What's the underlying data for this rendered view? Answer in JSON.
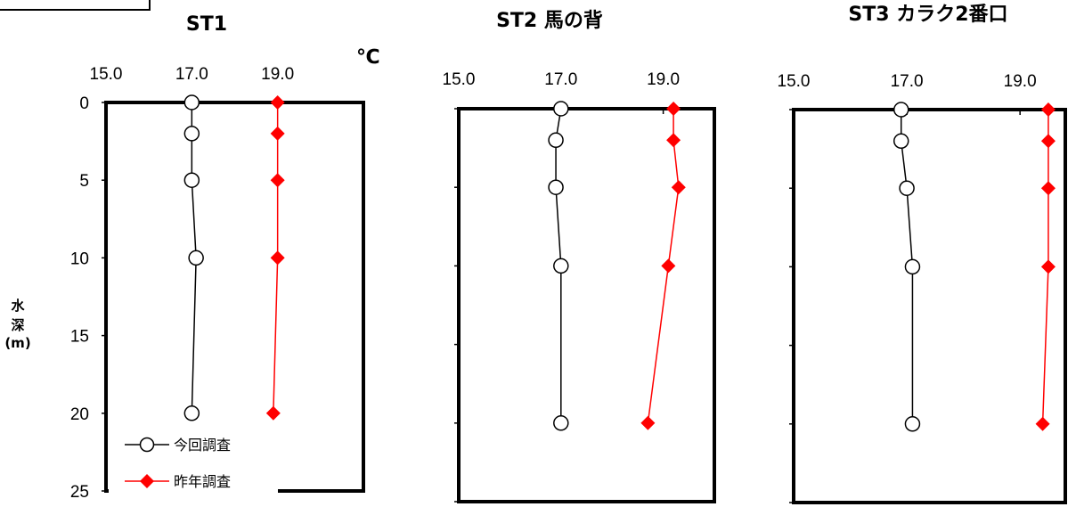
{
  "unit_label": "℃",
  "y_axis_label": [
    "水",
    "深",
    "(m)"
  ],
  "legend": [
    "今回調査",
    "昨年調査"
  ],
  "colors": {
    "current": "#000000",
    "last_year": "#ff0000"
  },
  "chart_data": [
    {
      "type": "line",
      "title": "ST1",
      "x_ticks": [
        "15.0",
        "17.0",
        "19.0"
      ],
      "y_ticks": [
        "0",
        "5",
        "10",
        "15",
        "20",
        "25"
      ],
      "xlim": [
        15.0,
        21.0
      ],
      "ylim": [
        0,
        25
      ],
      "series": [
        {
          "name": "今回調査",
          "temp": [
            17.0,
            17.0,
            17.0,
            17.1,
            17.0
          ],
          "depth": [
            0,
            2,
            5,
            10,
            20
          ]
        },
        {
          "name": "昨年調査",
          "temp": [
            19.0,
            19.0,
            19.0,
            19.0,
            18.9
          ],
          "depth": [
            0,
            2,
            5,
            10,
            20
          ]
        }
      ]
    },
    {
      "type": "line",
      "title": "ST2 馬の背",
      "x_ticks": [
        "15.0",
        "17.0",
        "19.0"
      ],
      "y_ticks": [],
      "xlim": [
        15.0,
        20.0
      ],
      "ylim": [
        0,
        25
      ],
      "series": [
        {
          "name": "今回調査",
          "temp": [
            17.0,
            16.9,
            16.9,
            17.0,
            17.0
          ],
          "depth": [
            0,
            2,
            5,
            10,
            20
          ]
        },
        {
          "name": "昨年調査",
          "temp": [
            19.2,
            19.2,
            19.3,
            19.1,
            18.7
          ],
          "depth": [
            0,
            2,
            5,
            10,
            20
          ]
        }
      ]
    },
    {
      "type": "line",
      "title": "ST3 カラク2番口",
      "x_ticks": [
        "15.0",
        "17.0",
        "19.0"
      ],
      "y_ticks": [],
      "xlim": [
        15.0,
        19.8
      ],
      "ylim": [
        0,
        25
      ],
      "series": [
        {
          "name": "今回調査",
          "temp": [
            16.9,
            16.9,
            17.0,
            17.1,
            17.1
          ],
          "depth": [
            0,
            2,
            5,
            10,
            20
          ]
        },
        {
          "name": "昨年調査",
          "temp": [
            19.5,
            19.5,
            19.5,
            19.5,
            19.4
          ],
          "depth": [
            0,
            2,
            5,
            10,
            20
          ]
        }
      ]
    }
  ]
}
